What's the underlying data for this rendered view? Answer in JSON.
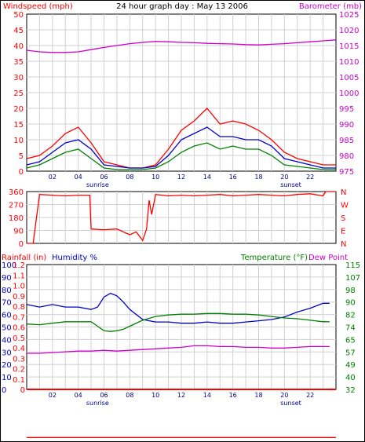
{
  "chart_data": [
    {
      "type": "line",
      "title": "24 hour graph day : May 13 2006",
      "ylabel": "Windspeed (mph)",
      "y2label": "Barometer (mb)",
      "ylim": [
        0,
        50
      ],
      "y2lim": [
        975,
        1025
      ],
      "yticks": [
        "0",
        "5",
        "10",
        "15",
        "20",
        "25",
        "30",
        "35",
        "40",
        "45",
        "50"
      ],
      "y2ticks": [
        "975",
        "980",
        "985",
        "990",
        "995",
        "1000",
        "1005",
        "1010",
        "1015",
        "1020",
        "1025"
      ],
      "xticks": [
        "02",
        "04",
        "06",
        "08",
        "10",
        "12",
        "14",
        "16",
        "18",
        "20",
        "22"
      ],
      "x_annotations": [
        {
          "x": 5.5,
          "label": "sunrise"
        },
        {
          "x": 20.5,
          "label": "sunset"
        }
      ],
      "grid": true,
      "colors": {
        "left": "#ff0000",
        "right": "#cc00cc"
      },
      "series": [
        {
          "color": "#cc00cc",
          "axis": "right",
          "x": [
            0,
            1,
            2,
            3,
            4,
            5,
            6,
            7,
            8,
            9,
            10,
            11,
            12,
            13,
            14,
            15,
            16,
            17,
            18,
            19,
            20,
            21,
            22,
            23,
            24
          ],
          "values": [
            1013.5,
            1013,
            1012.8,
            1012.8,
            1013,
            1013.7,
            1014.4,
            1015,
            1015.6,
            1016,
            1016.3,
            1016.2,
            1016,
            1015.9,
            1015.7,
            1015.6,
            1015.5,
            1015.3,
            1015.2,
            1015.4,
            1015.6,
            1015.9,
            1016.2,
            1016.5,
            1016.8
          ]
        },
        {
          "color": "#ff0000",
          "x": [
            0,
            1,
            2,
            3,
            4,
            5,
            6,
            7,
            8,
            9,
            10,
            11,
            12,
            13,
            14,
            15,
            16,
            17,
            18,
            19,
            20,
            21,
            22,
            23,
            24
          ],
          "values": [
            4,
            5,
            8,
            12,
            14,
            9,
            3,
            2,
            1,
            1,
            2,
            7,
            13,
            16,
            20,
            15,
            16,
            15,
            13,
            10,
            6,
            4,
            3,
            2,
            2
          ]
        },
        {
          "color": "#0000cc",
          "x": [
            0,
            1,
            2,
            3,
            4,
            5,
            6,
            7,
            8,
            9,
            10,
            11,
            12,
            13,
            14,
            15,
            16,
            17,
            18,
            19,
            20,
            21,
            22,
            23,
            24
          ],
          "values": [
            2,
            3,
            6,
            9,
            10,
            7,
            2,
            1.5,
            1,
            1,
            1.5,
            5,
            10,
            12,
            14,
            11,
            11,
            10,
            10,
            8,
            4,
            3,
            2,
            1,
            1
          ]
        },
        {
          "color": "#008000",
          "x": [
            0,
            1,
            2,
            3,
            4,
            5,
            6,
            7,
            8,
            9,
            10,
            11,
            12,
            13,
            14,
            15,
            16,
            17,
            18,
            19,
            20,
            21,
            22,
            23,
            24
          ],
          "values": [
            1,
            2,
            4,
            6,
            7,
            4,
            1,
            0.5,
            0.5,
            0.5,
            1,
            3,
            6,
            8,
            9,
            7,
            8,
            7,
            7,
            5,
            2,
            1.5,
            1,
            0.5,
            0.5
          ]
        }
      ]
    },
    {
      "type": "line",
      "ylim": [
        0,
        360
      ],
      "yticks": [
        "0",
        "90",
        "180",
        "270",
        "360"
      ],
      "y2ticks": [
        "N",
        "E",
        "S",
        "W",
        "N"
      ],
      "grid": true,
      "series": [
        {
          "color": "#ff0000",
          "x": [
            0,
            0.5,
            1,
            2,
            3,
            4,
            4.9,
            5,
            6,
            7,
            8,
            8.5,
            9,
            9.3,
            9.5,
            9.7,
            10,
            11,
            12,
            13,
            14,
            15,
            16,
            17,
            18,
            19,
            20,
            21,
            22,
            23,
            23.2,
            24
          ],
          "values": [
            0,
            0,
            340,
            335,
            330,
            335,
            335,
            100,
            95,
            100,
            60,
            80,
            20,
            100,
            300,
            200,
            340,
            330,
            335,
            330,
            335,
            340,
            330,
            335,
            340,
            335,
            330,
            340,
            345,
            330,
            360,
            360
          ]
        }
      ]
    },
    {
      "type": "line",
      "ylabel": "Rainfall (in)",
      "y1label": "Humidity %",
      "y2label": "Temperature (°F)",
      "y2label_suffix": "Dew Point",
      "ylim": [
        0,
        100
      ],
      "y2lim": [
        32,
        115
      ],
      "rain_ticks": [
        "0",
        "0.1",
        "0.2",
        "0.3",
        "0.4",
        "0.5",
        "0.6",
        "0.7",
        "0.8",
        "0.9",
        "1.0",
        "1.1",
        "1.2"
      ],
      "humidity_ticks": [
        "0",
        "10",
        "20",
        "30",
        "40",
        "50",
        "60",
        "70",
        "80",
        "90",
        "100"
      ],
      "temp_ticks": [
        "32",
        "40",
        "49",
        "57",
        "65",
        "74",
        "82",
        "90",
        "98",
        "107",
        "115"
      ],
      "xticks": [
        "02",
        "04",
        "06",
        "08",
        "10",
        "12",
        "14",
        "16",
        "18",
        "20",
        "22"
      ],
      "x_annotations": [
        {
          "x": 5.5,
          "label": "sunrise"
        },
        {
          "x": 20.5,
          "label": "sunset"
        }
      ],
      "grid": true,
      "colors": {
        "rain": "#ff0000",
        "humidity": "#0000cc",
        "temp": "#008000",
        "dew": "#cc00cc"
      },
      "series": [
        {
          "color": "#0000cc",
          "x": [
            0,
            1,
            2,
            3,
            4,
            5,
            5.5,
            6,
            6.5,
            7,
            7.5,
            8,
            9,
            10,
            11,
            12,
            13,
            14,
            15,
            16,
            17,
            18,
            19,
            20,
            21,
            22,
            23,
            23.5
          ],
          "values": [
            68,
            66,
            68,
            66,
            66,
            64,
            66,
            74,
            77,
            75,
            70,
            64,
            56,
            54,
            54,
            53,
            53,
            54,
            53,
            53,
            54,
            55,
            56,
            58,
            62,
            65,
            69,
            69
          ]
        },
        {
          "color": "#008000",
          "x": [
            0,
            1,
            2,
            3,
            4,
            5,
            5.5,
            6,
            6.5,
            7,
            7.5,
            8,
            9,
            10,
            11,
            12,
            13,
            14,
            15,
            16,
            17,
            18,
            19,
            20,
            21,
            22,
            23,
            23.5
          ],
          "values": [
            75.5,
            75,
            76,
            77,
            77,
            77,
            74,
            71,
            70.5,
            71,
            72,
            74,
            78,
            80.5,
            81.5,
            82,
            82,
            82.5,
            82.5,
            82,
            82,
            81.5,
            80.5,
            79.5,
            79,
            78,
            77,
            77
          ]
        },
        {
          "color": "#cc00cc",
          "x": [
            0,
            1,
            2,
            3,
            4,
            5,
            6,
            7,
            8,
            9,
            10,
            11,
            12,
            13,
            14,
            15,
            16,
            17,
            18,
            19,
            20,
            21,
            22,
            23,
            23.5
          ],
          "values": [
            56,
            56,
            56.5,
            57,
            57.5,
            57.5,
            58,
            57.5,
            58,
            58.5,
            59,
            59.5,
            60,
            61,
            61,
            60.5,
            60.5,
            60,
            60,
            59.5,
            59.5,
            60,
            60.5,
            60.5,
            60.5
          ]
        },
        {
          "color": "#ff0000",
          "x": [
            0,
            24
          ],
          "values": [
            0,
            0
          ]
        }
      ]
    }
  ]
}
